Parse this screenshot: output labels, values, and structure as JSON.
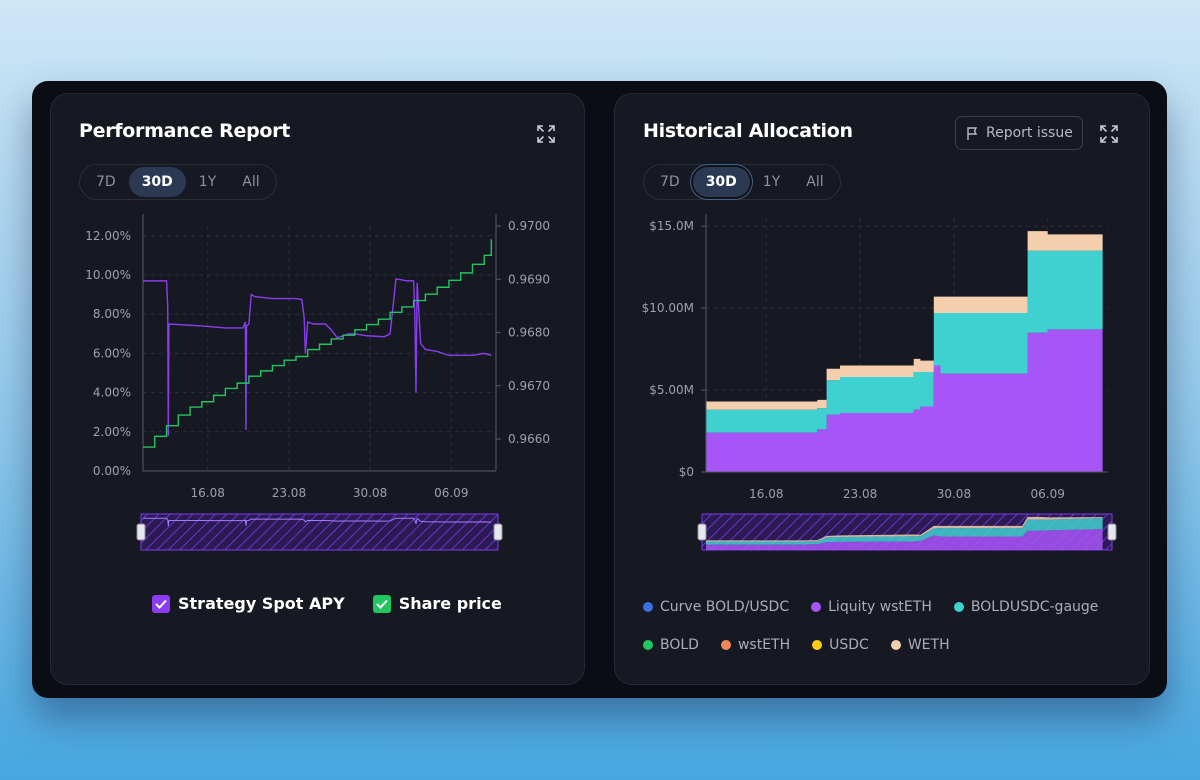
{
  "performance": {
    "title": "Performance Report",
    "tabs": [
      "7D",
      "30D",
      "1Y",
      "All"
    ],
    "active_tab": "30D",
    "legend": [
      {
        "label": "Strategy Spot APY",
        "color": "#8a3df0",
        "checked": true
      },
      {
        "label": "Share price",
        "color": "#22c55e",
        "checked": true
      }
    ]
  },
  "allocation": {
    "title": "Historical Allocation",
    "report_label": "Report issue",
    "tabs": [
      "7D",
      "30D",
      "1Y",
      "All"
    ],
    "active_tab": "30D",
    "legend": [
      {
        "label": "Curve BOLD/USDC",
        "color": "#3b6fe0"
      },
      {
        "label": "Liquity wstETH",
        "color": "#a855f7"
      },
      {
        "label": "BOLDUSDC-gauge",
        "color": "#3fd0d0"
      },
      {
        "label": "BOLD",
        "color": "#22c55e"
      },
      {
        "label": "wstETH",
        "color": "#f0875a"
      },
      {
        "label": "USDC",
        "color": "#facc15"
      },
      {
        "label": "WETH",
        "color": "#f3cfae"
      }
    ]
  },
  "chart_data": [
    {
      "type": "line",
      "title": "Performance Report",
      "x_ticks": [
        "16.08",
        "23.08",
        "30.08",
        "06.09"
      ],
      "y_left_ticks": [
        "12.00%",
        "10.00%",
        "8.00%",
        "6.00%",
        "4.00%",
        "2.00%",
        "0.00%"
      ],
      "y_right_ticks": [
        "0.9700",
        "0.9690",
        "0.9680",
        "0.9670",
        "0.9660"
      ],
      "y_left_range": [
        0,
        12.5
      ],
      "y_right_range": [
        0.9654,
        0.97
      ],
      "x_range": [
        0,
        30
      ],
      "grid": true,
      "series": [
        {
          "name": "Strategy Spot APY",
          "color": "#8a3df0",
          "axis": "left",
          "points": [
            [
              0,
              9.7
            ],
            [
              2,
              9.7
            ],
            [
              2.1,
              8.4
            ],
            [
              2.15,
              1.8
            ],
            [
              2.2,
              7.5
            ],
            [
              5,
              7.4
            ],
            [
              6,
              7.35
            ],
            [
              7,
              7.3
            ],
            [
              8.5,
              7.3
            ],
            [
              8.7,
              7.6
            ],
            [
              8.75,
              2.1
            ],
            [
              8.8,
              7.4
            ],
            [
              9,
              7.5
            ],
            [
              9.2,
              9.0
            ],
            [
              9.5,
              8.9
            ],
            [
              11,
              8.8
            ],
            [
              12,
              8.8
            ],
            [
              13,
              8.8
            ],
            [
              13.5,
              8.75
            ],
            [
              13.7,
              7.8
            ],
            [
              13.8,
              6.0
            ],
            [
              14,
              7.6
            ],
            [
              14.5,
              7.5
            ],
            [
              15.5,
              7.5
            ],
            [
              16,
              7.2
            ],
            [
              16.5,
              6.8
            ],
            [
              17,
              6.9
            ],
            [
              17.5,
              7.0
            ],
            [
              18,
              7.0
            ],
            [
              19,
              6.9
            ],
            [
              20.5,
              6.85
            ],
            [
              21,
              7.0
            ],
            [
              21.5,
              9.8
            ],
            [
              22.5,
              9.7
            ],
            [
              23,
              9.7
            ],
            [
              23.1,
              8.0
            ],
            [
              23.2,
              4.0
            ],
            [
              23.3,
              9.6
            ],
            [
              23.6,
              6.5
            ],
            [
              24,
              6.2
            ],
            [
              25,
              6.1
            ],
            [
              26,
              5.9
            ],
            [
              27,
              5.9
            ],
            [
              28,
              5.9
            ],
            [
              29,
              6.0
            ],
            [
              29.6,
              5.9
            ]
          ]
        },
        {
          "name": "Share price",
          "color": "#22c55e",
          "axis": "right",
          "points": [
            [
              0,
              0.96585
            ],
            [
              1,
              0.96605
            ],
            [
              2,
              0.96625
            ],
            [
              3,
              0.96645
            ],
            [
              4,
              0.9666
            ],
            [
              5,
              0.9667
            ],
            [
              6,
              0.96682
            ],
            [
              7,
              0.96695
            ],
            [
              8,
              0.96705
            ],
            [
              9,
              0.96718
            ],
            [
              10,
              0.96728
            ],
            [
              11,
              0.96738
            ],
            [
              12,
              0.96748
            ],
            [
              13,
              0.96755
            ],
            [
              14,
              0.96768
            ],
            [
              15,
              0.96778
            ],
            [
              16,
              0.96788
            ],
            [
              17,
              0.96795
            ],
            [
              18,
              0.96805
            ],
            [
              19,
              0.96815
            ],
            [
              20,
              0.96825
            ],
            [
              21,
              0.96838
            ],
            [
              22,
              0.96848
            ],
            [
              23,
              0.9686
            ],
            [
              24,
              0.96872
            ],
            [
              25,
              0.96885
            ],
            [
              26,
              0.96898
            ],
            [
              27,
              0.96912
            ],
            [
              28,
              0.96928
            ],
            [
              29,
              0.96945
            ],
            [
              29.6,
              0.96975
            ]
          ]
        }
      ]
    },
    {
      "type": "area",
      "title": "Historical Allocation",
      "x_ticks": [
        "16.08",
        "23.08",
        "30.08",
        "06.09"
      ],
      "y_ticks": [
        "$15.0M",
        "$10.00M",
        "$5.00M",
        "$0"
      ],
      "y_range": [
        0,
        15.5
      ],
      "x_range": [
        0,
        30
      ],
      "stacked": true,
      "x": [
        0,
        7,
        8.3,
        9,
        10,
        15.5,
        16,
        17,
        17.5,
        23.6,
        24,
        25,
        25.5,
        29.6
      ],
      "series": [
        {
          "name": "Liquity wstETH",
          "color": "#a855f7",
          "values": [
            2.4,
            2.4,
            2.6,
            3.5,
            3.6,
            3.8,
            4.0,
            6.5,
            6.0,
            6.0,
            8.5,
            8.5,
            8.7,
            9.3
          ]
        },
        {
          "name": "BOLDUSDC-gauge",
          "color": "#3fd0d0",
          "values": [
            1.4,
            1.4,
            1.3,
            2.1,
            2.2,
            2.3,
            2.1,
            3.2,
            3.7,
            3.7,
            5.0,
            5.0,
            4.8,
            4.9
          ]
        },
        {
          "name": "WETH",
          "color": "#f3cfae",
          "values": [
            0.5,
            0.5,
            0.5,
            0.7,
            0.7,
            0.8,
            0.7,
            1.0,
            1.0,
            1.0,
            1.2,
            1.2,
            1.0,
            0.4
          ]
        }
      ]
    }
  ]
}
